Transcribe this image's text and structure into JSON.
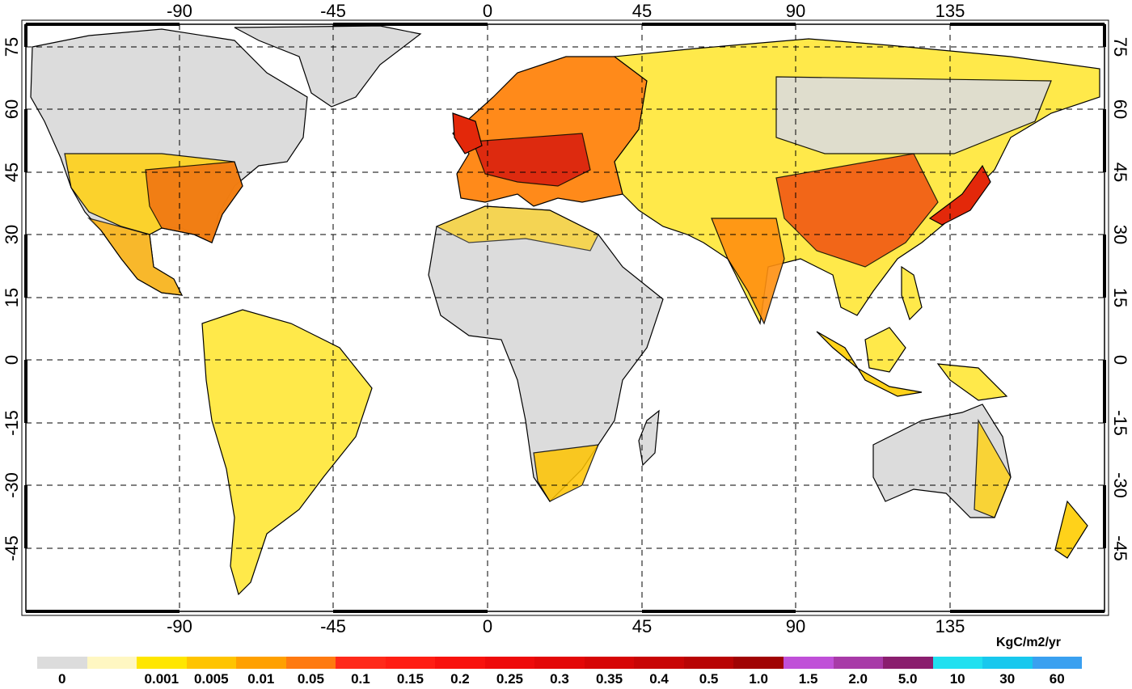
{
  "map": {
    "x_ticks_top": [
      "-90",
      "-45",
      "0",
      "45",
      "90",
      "135"
    ],
    "x_ticks_bottom": [
      "-90",
      "-45",
      "0",
      "45",
      "90",
      "135"
    ],
    "y_ticks_left": [
      "75",
      "60",
      "45",
      "30",
      "15",
      "0",
      "-15",
      "-30",
      "-45"
    ],
    "y_ticks_right": [
      "75",
      "60",
      "45",
      "30",
      "15",
      "0",
      "-15",
      "-30",
      "-45"
    ],
    "ocean_color": "#ffffff",
    "land_color": "#dcdcdc",
    "gridline_style": "dashed"
  },
  "legend": {
    "unit": "KgC/m2/yr",
    "swatches": [
      {
        "color": "#dcdcdc",
        "label": "0"
      },
      {
        "color": "#fff7c2",
        "label": ""
      },
      {
        "color": "#ffe600",
        "label": "0.001"
      },
      {
        "color": "#ffc400",
        "label": "0.005"
      },
      {
        "color": "#ffa000",
        "label": "0.01"
      },
      {
        "color": "#ff7a10",
        "label": "0.05"
      },
      {
        "color": "#ff2a1a",
        "label": "0.1"
      },
      {
        "color": "#ff1e14",
        "label": "0.15"
      },
      {
        "color": "#f8120e",
        "label": "0.2"
      },
      {
        "color": "#ee0b0b",
        "label": "0.25"
      },
      {
        "color": "#e30808",
        "label": "0.3"
      },
      {
        "color": "#d60606",
        "label": "0.35"
      },
      {
        "color": "#c80505",
        "label": "0.4"
      },
      {
        "color": "#b80404",
        "label": "0.5"
      },
      {
        "color": "#a00303",
        "label": "1.0"
      },
      {
        "color": "#c050d8",
        "label": "1.5"
      },
      {
        "color": "#a83aa8",
        "label": "2.0"
      },
      {
        "color": "#8a1e6e",
        "label": "5.0"
      },
      {
        "color": "#20e0f0",
        "label": "10"
      },
      {
        "color": "#18c8ee",
        "label": "30"
      },
      {
        "color": "#3aa0f0",
        "label": "60"
      }
    ]
  }
}
